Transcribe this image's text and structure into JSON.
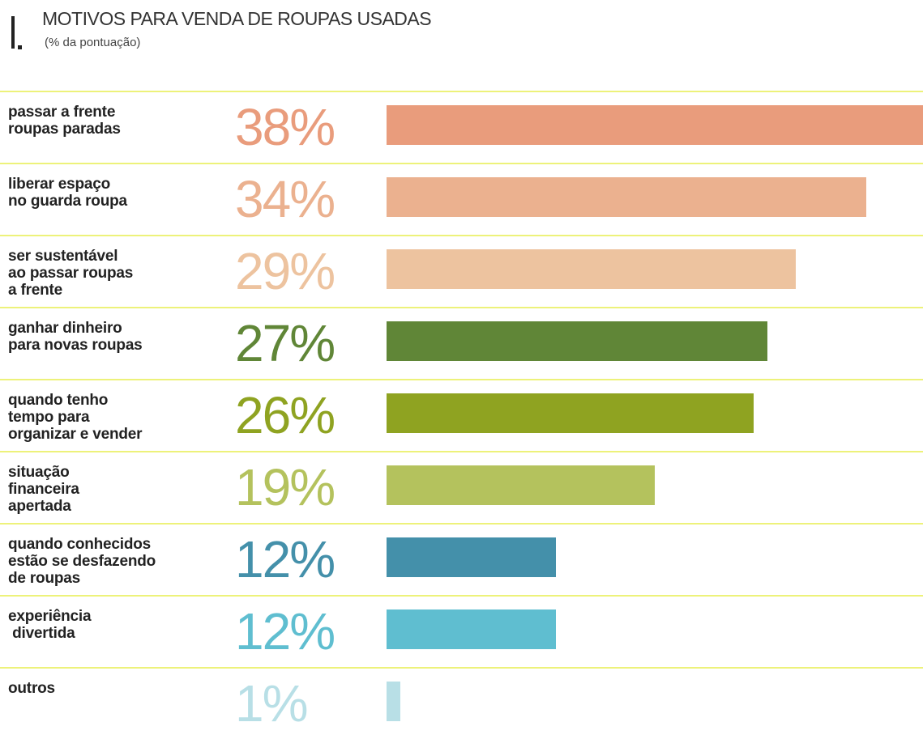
{
  "chart_data": {
    "type": "bar",
    "orientation": "horizontal",
    "title": "MOTIVOS PARA VENDA DE ROUPAS USADAS",
    "subtitle": "(% da pontuação)",
    "categories": [
      "passar a frente\nroupas paradas",
      "liberar espaço\nno guarda roupa",
      "ser sustentável\nao passar roupas\na frente",
      "ganhar dinheiro\npara novas roupas",
      "quando tenho\ntempo para\norganizar e vender",
      "situação\nfinanceira\napertada",
      "quando conhecidos\nestão se desfazendo\nde roupas",
      "experiência\n divertida",
      "outros"
    ],
    "values": [
      38,
      34,
      29,
      27,
      26,
      19,
      12,
      12,
      1
    ],
    "value_labels": [
      "38%",
      "34%",
      "29%",
      "27%",
      "26%",
      "19%",
      "12%",
      "12%",
      "1%"
    ],
    "colors": [
      "#e99c7c",
      "#ebb18f",
      "#edc39f",
      "#608637",
      "#8fa321",
      "#b4c25d",
      "#4490aa",
      "#5fbed0",
      "#b8dfe6"
    ]
  }
}
